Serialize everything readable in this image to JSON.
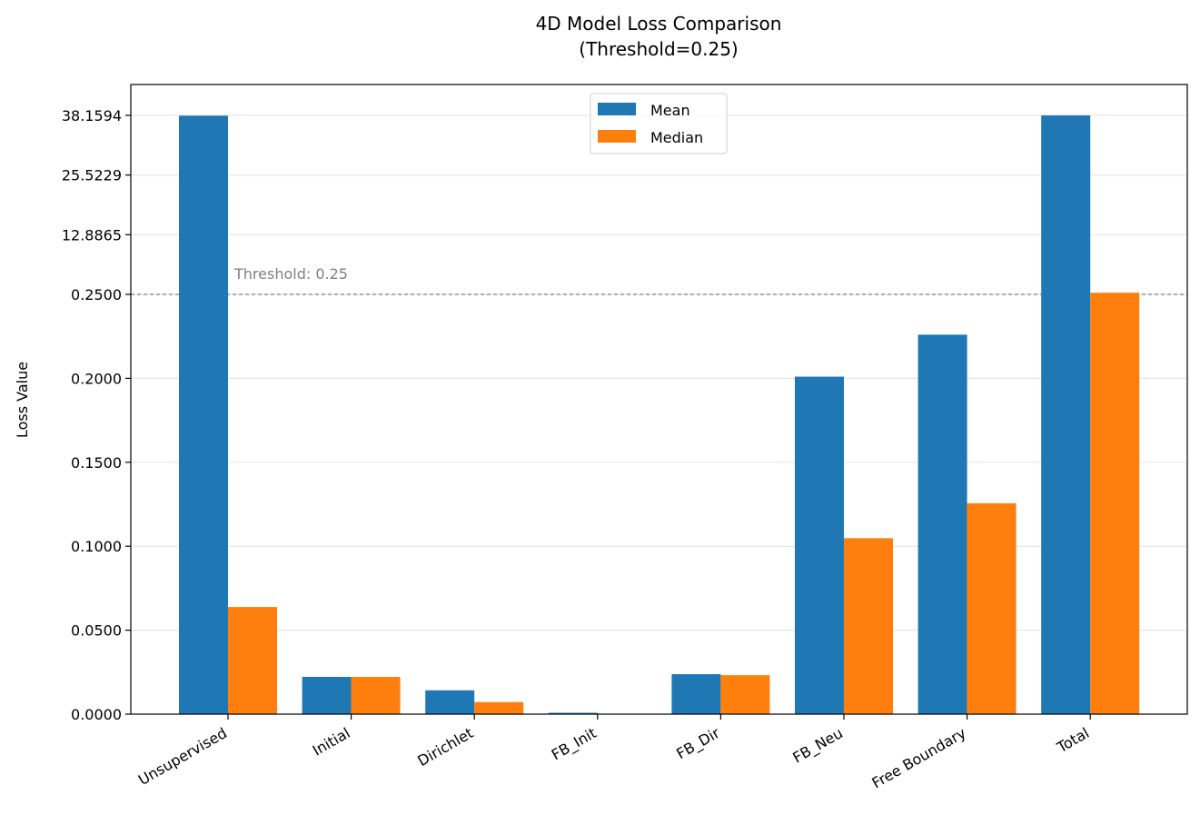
{
  "chart_data": {
    "type": "bar",
    "title": "4D Model Loss Comparison",
    "subtitle": "(Threshold=0.25)",
    "xlabel": "",
    "ylabel": "Loss Value",
    "categories": [
      "Unsupervised",
      "Initial",
      "Dirichlet",
      "FB_Init",
      "FB_Dir",
      "FB_Neu",
      "Free Boundary",
      "Total"
    ],
    "series": [
      {
        "name": "Mean",
        "color": "#1f77b4",
        "values": [
          38.1,
          0.0222,
          0.0142,
          0.0008,
          0.0238,
          0.201,
          0.226,
          38.16
        ]
      },
      {
        "name": "Median",
        "color": "#ff7f0e",
        "values": [
          0.0638,
          0.0222,
          0.0072,
          0.0,
          0.0232,
          0.1048,
          0.1256,
          0.6
        ]
      }
    ],
    "y_scale": "piecewise: linear 0–0.25, linear 0.25–38.1594 (compressed upper band)",
    "yticks": [
      "0.0000",
      "0.0500",
      "0.1000",
      "0.1500",
      "0.2000",
      "0.2500",
      "12.8865",
      "25.5229",
      "38.1594"
    ],
    "ytick_values": [
      0,
      0.05,
      0.1,
      0.15,
      0.2,
      0.25,
      12.8865,
      25.5229,
      38.1594
    ],
    "ylim": [
      0,
      39.5
    ],
    "threshold": {
      "value": 0.25,
      "label": "Threshold: 0.25",
      "color": "#808080"
    },
    "grid": "horizontal",
    "legend_placement": "top-center"
  }
}
